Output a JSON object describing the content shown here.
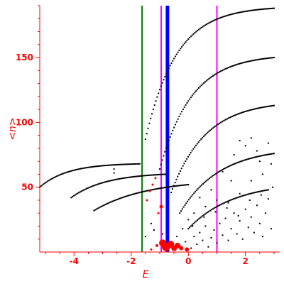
{
  "chart_data": {
    "type": "scatter",
    "title": "",
    "xlabel": "E",
    "ylabel": "<n>",
    "xlim": [
      -5.2,
      3.1
    ],
    "ylim": [
      0,
      190
    ],
    "x_ticks": [
      {
        "value": -4,
        "label": "-4"
      },
      {
        "value": -2,
        "label": "-2"
      },
      {
        "value": 0,
        "label": "0"
      },
      {
        "value": 2,
        "label": "2"
      }
    ],
    "y_ticks": [
      {
        "value": 50,
        "label": "50"
      },
      {
        "value": 100,
        "label": "100"
      },
      {
        "value": 150,
        "label": "150"
      }
    ],
    "colors": {
      "axis": "#ff0000",
      "points": "#000000",
      "highlight": "#ff0000",
      "green_line": "#008000",
      "blue_line": "#0000ff",
      "magenta_line": "#ff00ff"
    },
    "vlines": [
      {
        "x": -1.62,
        "color": "#008000",
        "width": 2
      },
      {
        "x": -0.95,
        "color": "#ff00ff",
        "width": 2
      },
      {
        "x": -0.73,
        "color": "#0000ff",
        "width": 5
      },
      {
        "x": 1.0,
        "color": "#ff00ff",
        "width": 2
      }
    ],
    "curves": [
      {
        "name": "",
        "x0": -5.2,
        "x1": -1.7,
        "y0": 50,
        "y1": 68,
        "k": -1.2
      },
      {
        "name": "",
        "x0": -4.1,
        "x1": -0.8,
        "y0": 42,
        "y1": 60,
        "k": -0.9
      },
      {
        "name": "",
        "x0": -3.3,
        "x1": 0.0,
        "y0": 32,
        "y1": 52,
        "k": -0.6
      },
      {
        "name": "",
        "x0": -1.5,
        "x1": 3.0,
        "y0": 87,
        "y1": 188,
        "k": -1.4
      },
      {
        "name": "",
        "x0": -1.0,
        "x1": 3.0,
        "y0": 64,
        "y1": 150,
        "k": -1.2
      },
      {
        "name": "",
        "x0": -0.6,
        "x1": 3.0,
        "y0": 46,
        "y1": 113,
        "k": -1.0
      },
      {
        "name": "",
        "x0": -0.3,
        "x1": 3.0,
        "y0": 30,
        "y1": 76,
        "k": -0.8
      },
      {
        "name": "",
        "x0": 0.0,
        "x1": 2.8,
        "y0": 18,
        "y1": 48,
        "k": -0.6
      }
    ],
    "cluster_points": [
      [
        -0.5,
        2
      ],
      [
        -0.3,
        5
      ],
      [
        -0.1,
        8
      ],
      [
        0.1,
        3
      ],
      [
        0.2,
        12
      ],
      [
        0.3,
        6
      ],
      [
        0.4,
        15
      ],
      [
        0.5,
        9
      ],
      [
        0.6,
        20
      ],
      [
        0.7,
        4
      ],
      [
        0.8,
        11
      ],
      [
        0.9,
        17
      ],
      [
        1.0,
        7
      ],
      [
        1.1,
        22
      ],
      [
        1.2,
        13
      ],
      [
        1.3,
        26
      ],
      [
        1.4,
        9
      ],
      [
        1.5,
        18
      ],
      [
        1.6,
        30
      ],
      [
        1.7,
        14
      ],
      [
        1.8,
        24
      ],
      [
        1.9,
        10
      ],
      [
        2.0,
        33
      ],
      [
        2.1,
        19
      ],
      [
        2.2,
        27
      ],
      [
        2.3,
        15
      ],
      [
        2.4,
        36
      ],
      [
        2.5,
        22
      ],
      [
        2.6,
        12
      ],
      [
        2.7,
        30
      ],
      [
        2.8,
        41
      ],
      [
        2.9,
        18
      ],
      [
        0.0,
        25
      ],
      [
        0.2,
        30
      ],
      [
        -0.2,
        18
      ],
      [
        0.6,
        35
      ],
      [
        1.0,
        40
      ],
      [
        1.4,
        38
      ],
      [
        1.8,
        45
      ],
      [
        2.2,
        55
      ],
      [
        2.6,
        60
      ],
      [
        2.9,
        68
      ],
      [
        1.2,
        62
      ],
      [
        1.6,
        75
      ],
      [
        2.0,
        82
      ],
      [
        2.4,
        78
      ],
      [
        2.8,
        84
      ],
      [
        1.8,
        86
      ],
      [
        2.2,
        88
      ],
      [
        2.5,
        70
      ],
      [
        1.5,
        55
      ],
      [
        0.8,
        48
      ],
      [
        0.4,
        42
      ],
      [
        -0.4,
        12
      ],
      [
        -0.6,
        6
      ],
      [
        0.15,
        20
      ],
      [
        0.55,
        27
      ],
      [
        0.95,
        31
      ],
      [
        1.35,
        34
      ],
      [
        1.75,
        28
      ],
      [
        2.15,
        40
      ],
      [
        2.55,
        44
      ],
      [
        2.95,
        50
      ],
      [
        -2.6,
        64
      ],
      [
        -2.6,
        61
      ],
      [
        -1.2,
        17
      ],
      [
        -0.9,
        14
      ],
      [
        -1.5,
        12
      ],
      [
        -1.3,
        22
      ]
    ],
    "red_points": [
      {
        "x": -1.15,
        "y": 57,
        "r": 1.5
      },
      {
        "x": -1.35,
        "y": 47,
        "r": 1.5
      },
      {
        "x": -1.25,
        "y": 52,
        "r": 1.5
      },
      {
        "x": -1.05,
        "y": 30,
        "r": 1.5
      },
      {
        "x": -1.45,
        "y": 40,
        "r": 1.5
      },
      {
        "x": -0.95,
        "y": 35,
        "r": 2.5
      },
      {
        "x": -0.9,
        "y": 7,
        "r": 5
      },
      {
        "x": -0.78,
        "y": 4,
        "r": 6
      },
      {
        "x": -0.62,
        "y": 6,
        "r": 5
      },
      {
        "x": -0.5,
        "y": 3,
        "r": 4
      },
      {
        "x": -0.38,
        "y": 5,
        "r": 4
      },
      {
        "x": -0.25,
        "y": 3,
        "r": 3
      },
      {
        "x": -0.05,
        "y": 2,
        "r": 3
      },
      {
        "x": -1.1,
        "y": 5,
        "r": 2
      },
      {
        "x": -1.3,
        "y": 2,
        "r": 1.5
      }
    ]
  }
}
